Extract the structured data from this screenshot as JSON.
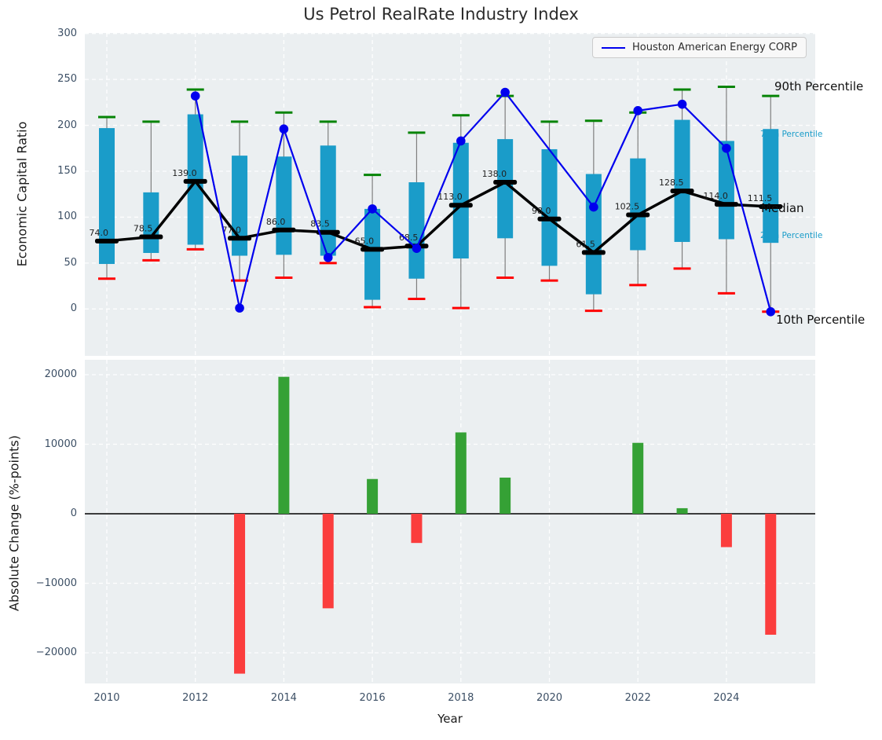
{
  "title": "Us Petrol RealRate Industry Index",
  "legend": {
    "label": "Houston American Energy CORP"
  },
  "annotations": {
    "p90": "90th Percentile",
    "p75": "75th Percentile",
    "median": "Median",
    "p25": "25th Percentile",
    "p10": "10th Percentile"
  },
  "colors": {
    "box": "#1a9cc9",
    "p90_cap": "#068406",
    "p10_cap": "#ff0000",
    "whisker": "#7f7f7f",
    "median": "#000000",
    "median_label": "#1f1f1f",
    "company_line": "#0000ee",
    "bar_positive": "#35a135",
    "bar_negative": "#fb3d3d",
    "grid": "#ffffff",
    "axes_bg": "#ebeff1",
    "tick_label": "#3c4f65"
  },
  "chart_data": [
    {
      "type": "box-percentile-with-line",
      "title": "Us Petrol RealRate Industry Index",
      "ylabel": "Economic Capital Ratio",
      "ylim": [
        -51,
        301
      ],
      "yticks": [
        0,
        50,
        100,
        150,
        200,
        250,
        300
      ],
      "ytick_labels": [
        "0",
        "50",
        "100",
        "150",
        "200",
        "250",
        "300"
      ],
      "grid": true,
      "legend_position": "upper right",
      "years": [
        2010,
        2011,
        2012,
        2013,
        2014,
        2015,
        2016,
        2017,
        2018,
        2019,
        2020,
        2021,
        2022,
        2023,
        2024,
        2025
      ],
      "series": [
        {
          "name": "90th Percentile",
          "values": [
            209,
            204,
            239,
            204,
            214,
            204,
            146,
            192,
            211,
            232,
            204,
            205,
            214,
            239,
            242,
            232
          ]
        },
        {
          "name": "75th Percentile",
          "values": [
            197,
            127,
            212,
            167,
            166,
            178,
            109,
            138,
            181,
            185,
            174,
            147,
            164,
            206,
            183,
            196
          ]
        },
        {
          "name": "Median",
          "values": [
            74,
            78.5,
            139,
            77,
            86,
            83.5,
            65,
            68.5,
            113,
            138,
            98,
            61.5,
            102.5,
            128.5,
            114,
            111.5
          ],
          "labels": [
            "74.0",
            "78.5",
            "139.0",
            "77.0",
            "86.0",
            "83.5",
            "65.0",
            "68.5",
            "113.0",
            "138.0",
            "98.0",
            "61.5",
            "102.5",
            "128.5",
            "114.0",
            "111.5"
          ]
        },
        {
          "name": "25th Percentile",
          "values": [
            49,
            61,
            70,
            58,
            59,
            58,
            10,
            33,
            55,
            77,
            47,
            16,
            64,
            73,
            76,
            72
          ]
        },
        {
          "name": "10th Percentile",
          "values": [
            33,
            53,
            65,
            31,
            34,
            50,
            2,
            11,
            1,
            34,
            31,
            -2,
            26,
            44,
            17,
            -3
          ]
        },
        {
          "name": "Houston American Energy CORP",
          "values": [
            null,
            null,
            232,
            1,
            196,
            56,
            109,
            66,
            183,
            236,
            null,
            111,
            216,
            223,
            175,
            -3
          ]
        }
      ]
    },
    {
      "type": "bar",
      "ylabel": "Absolute Change (%-points)",
      "xlabel": "Year",
      "ylim": [
        -24400,
        22150
      ],
      "yticks": [
        20000,
        10000,
        0,
        -10000,
        -20000
      ],
      "ytick_labels": [
        "20000",
        "10000",
        "0",
        "−10000",
        "−20000"
      ],
      "xticks": [
        2010,
        2012,
        2014,
        2016,
        2018,
        2020,
        2022,
        2024
      ],
      "xtick_labels": [
        "2010",
        "2012",
        "2014",
        "2016",
        "2018",
        "2020",
        "2022",
        "2024"
      ],
      "years": [
        2010,
        2011,
        2012,
        2013,
        2014,
        2015,
        2016,
        2017,
        2018,
        2019,
        2020,
        2021,
        2022,
        2023,
        2024,
        2025
      ],
      "values": [
        0,
        0,
        0,
        -23000,
        19700,
        -13600,
        5000,
        -4200,
        11700,
        5200,
        0,
        0,
        10200,
        800,
        -4800,
        -17400
      ]
    }
  ]
}
